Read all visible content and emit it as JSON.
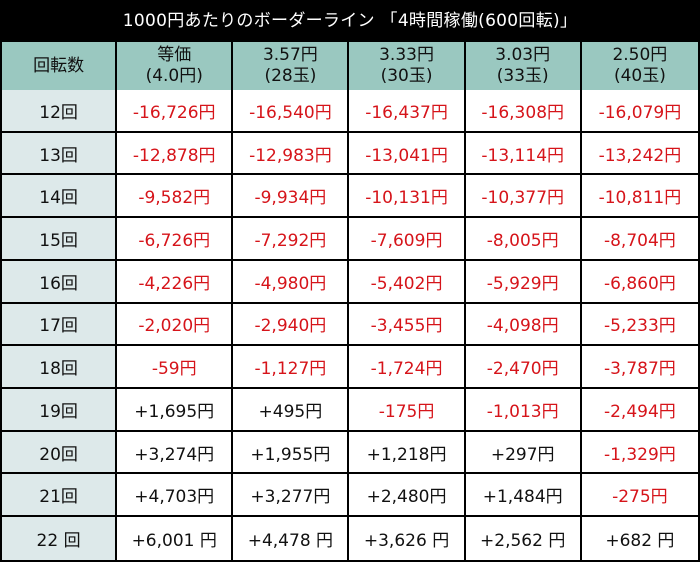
{
  "title": "1000円あたりのボーダーライン 「4時間稼働(600回転)」",
  "header": {
    "corner": "回転数",
    "columns": [
      {
        "line1": "等価",
        "line2": "(4.0円)"
      },
      {
        "line1": "3.57円",
        "line2": "(28玉)"
      },
      {
        "line1": "3.33円",
        "line2": "(30玉)"
      },
      {
        "line1": "3.03円",
        "line2": "(33玉)"
      },
      {
        "line1": "2.50円",
        "line2": "(40玉)"
      }
    ]
  },
  "rows": [
    {
      "label": "12回",
      "cells": [
        "-16,726円",
        "-16,540円",
        "-16,437円",
        "-16,308円",
        "-16,079円"
      ]
    },
    {
      "label": "13回",
      "cells": [
        "-12,878円",
        "-12,983円",
        "-13,041円",
        "-13,114円",
        "-13,242円"
      ]
    },
    {
      "label": "14回",
      "cells": [
        "-9,582円",
        "-9,934円",
        "-10,131円",
        "-10,377円",
        "-10,811円"
      ]
    },
    {
      "label": "15回",
      "cells": [
        "-6,726円",
        "-7,292円",
        "-7,609円",
        "-8,005円",
        "-8,704円"
      ]
    },
    {
      "label": "16回",
      "cells": [
        "-4,226円",
        "-4,980円",
        "-5,402円",
        "-5,929円",
        "-6,860円"
      ]
    },
    {
      "label": "17回",
      "cells": [
        "-2,020円",
        "-2,940円",
        "-3,455円",
        "-4,098円",
        "-5,233円"
      ]
    },
    {
      "label": "18回",
      "cells": [
        "-59円",
        "-1,127円",
        "-1,724円",
        "-2,470円",
        "-3,787円"
      ]
    },
    {
      "label": "19回",
      "cells": [
        "+1,695円",
        "+495円",
        "-175円",
        "-1,013円",
        "-2,494円"
      ]
    },
    {
      "label": "20回",
      "cells": [
        "+3,274円",
        "+1,955円",
        "+1,218円",
        "+297円",
        "-1,329円"
      ]
    },
    {
      "label": "21回",
      "cells": [
        "+4,703円",
        "+3,277円",
        "+2,480円",
        "+1,484円",
        "-275円"
      ]
    },
    {
      "label": "22 回",
      "cells": [
        "+6,001 円",
        "+4,478 円",
        "+3,626 円",
        "+2,562 円",
        "+682 円"
      ]
    }
  ],
  "colors": {
    "header_bg": "#9ac8c0",
    "row_header_bg": "#dde9ea",
    "negative": "#d6141a",
    "positive": "#111111",
    "background": "#000000"
  }
}
